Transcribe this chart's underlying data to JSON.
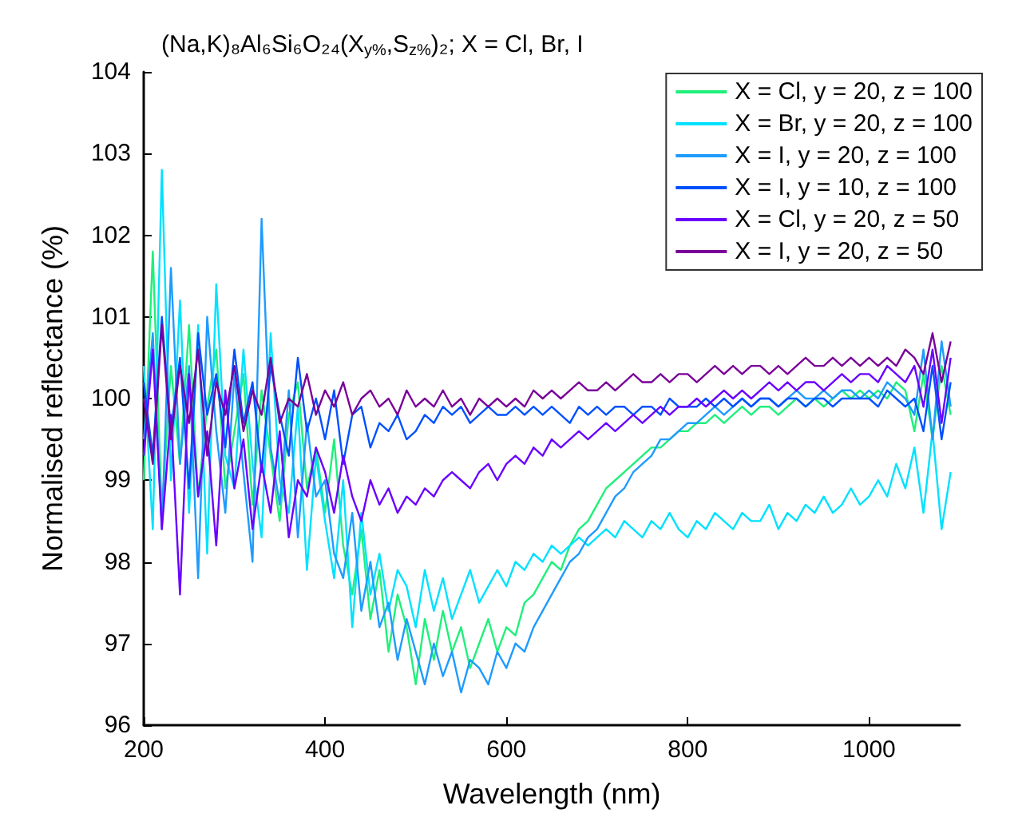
{
  "chart_data": {
    "type": "line",
    "title": "(Na,K)₈Al₆Si₆O₂₄(X$_{y%}$,S$_{z%}$)₂; X = Cl, Br, I",
    "xlabel": "Wavelength (nm)",
    "ylabel": "Normalised reflectance (%)",
    "x": [
      200,
      210,
      220,
      230,
      240,
      250,
      260,
      270,
      280,
      290,
      300,
      310,
      320,
      330,
      340,
      350,
      360,
      370,
      380,
      390,
      400,
      410,
      420,
      430,
      440,
      450,
      460,
      470,
      480,
      490,
      500,
      510,
      520,
      530,
      540,
      550,
      560,
      570,
      580,
      590,
      600,
      610,
      620,
      630,
      640,
      650,
      660,
      670,
      680,
      690,
      700,
      710,
      720,
      730,
      740,
      750,
      760,
      770,
      780,
      790,
      800,
      810,
      820,
      830,
      840,
      850,
      860,
      870,
      880,
      890,
      900,
      910,
      920,
      930,
      940,
      950,
      960,
      970,
      980,
      990,
      1000,
      1010,
      1020,
      1030,
      1040,
      1050,
      1060,
      1070,
      1080,
      1090
    ],
    "xlim": [
      200,
      1100
    ],
    "xticks": [
      200,
      400,
      600,
      800,
      1000
    ],
    "ylim": [
      96,
      104
    ],
    "yticks": [
      96,
      97,
      98,
      99,
      100,
      101,
      102,
      103,
      104
    ],
    "legend": "top right",
    "grid": false,
    "marker": "none",
    "line_style": "solid",
    "series": [
      {
        "name": "X = Cl, y = 20, z = 100",
        "color": "#1ef07a",
        "values": [
          99.0,
          101.8,
          98.6,
          100.4,
          99.2,
          100.9,
          98.8,
          99.9,
          100.6,
          98.9,
          99.6,
          100.3,
          98.7,
          100.1,
          99.3,
          98.5,
          99.8,
          100.2,
          98.9,
          99.4,
          98.6,
          99.5,
          98.2,
          97.6,
          98.4,
          97.3,
          97.9,
          96.9,
          97.6,
          97.2,
          96.5,
          97.3,
          96.8,
          97.4,
          96.9,
          97.2,
          96.7,
          97.0,
          97.3,
          96.9,
          97.2,
          97.1,
          97.5,
          97.6,
          97.8,
          98.0,
          97.9,
          98.2,
          98.4,
          98.5,
          98.7,
          98.9,
          99.0,
          99.1,
          99.2,
          99.3,
          99.4,
          99.4,
          99.5,
          99.6,
          99.6,
          99.7,
          99.7,
          99.8,
          99.7,
          99.8,
          99.9,
          99.8,
          99.9,
          99.9,
          99.8,
          99.9,
          100.0,
          99.9,
          100.0,
          99.9,
          100.0,
          100.1,
          100.0,
          100.1,
          100.0,
          100.1,
          100.0,
          100.2,
          100.1,
          99.6,
          100.3,
          99.5,
          100.4,
          99.8
        ]
      },
      {
        "name": "X = Br, y = 20, z = 100",
        "color": "#00e1ff",
        "values": [
          100.4,
          98.4,
          102.8,
          99.0,
          101.2,
          98.6,
          100.9,
          98.1,
          101.4,
          99.3,
          98.9,
          100.6,
          99.2,
          98.3,
          100.8,
          99.0,
          98.6,
          99.9,
          97.9,
          99.3,
          98.5,
          97.8,
          99.0,
          97.2,
          98.6,
          97.6,
          98.1,
          97.4,
          97.9,
          97.7,
          97.2,
          97.9,
          97.4,
          97.8,
          97.3,
          97.6,
          97.9,
          97.5,
          97.7,
          97.9,
          97.7,
          98.0,
          97.9,
          98.1,
          98.0,
          98.2,
          98.1,
          98.2,
          98.3,
          98.2,
          98.3,
          98.4,
          98.3,
          98.5,
          98.4,
          98.3,
          98.5,
          98.4,
          98.6,
          98.4,
          98.3,
          98.5,
          98.4,
          98.6,
          98.5,
          98.4,
          98.6,
          98.5,
          98.5,
          98.7,
          98.4,
          98.6,
          98.5,
          98.7,
          98.6,
          98.8,
          98.6,
          98.7,
          98.9,
          98.7,
          98.8,
          99.0,
          98.8,
          99.2,
          98.9,
          99.4,
          98.6,
          99.6,
          98.4,
          99.1
        ]
      },
      {
        "name": "X = I, y = 20, z = 100",
        "color": "#1e9bff",
        "values": [
          99.5,
          100.8,
          98.4,
          101.6,
          99.2,
          100.4,
          97.8,
          101.0,
          99.6,
          98.6,
          100.3,
          99.1,
          98.0,
          102.2,
          99.4,
          98.7,
          100.1,
          98.3,
          99.7,
          98.8,
          99.0,
          98.1,
          97.8,
          98.6,
          97.4,
          98.0,
          97.2,
          97.5,
          96.8,
          97.3,
          96.9,
          96.5,
          97.0,
          96.6,
          96.9,
          96.4,
          96.8,
          96.7,
          96.5,
          96.9,
          96.7,
          97.0,
          96.9,
          97.2,
          97.4,
          97.6,
          97.8,
          98.0,
          98.1,
          98.3,
          98.4,
          98.6,
          98.8,
          98.9,
          99.1,
          99.2,
          99.3,
          99.5,
          99.5,
          99.6,
          99.7,
          99.7,
          99.8,
          99.9,
          99.8,
          99.9,
          100.0,
          99.9,
          100.0,
          100.0,
          99.9,
          100.0,
          100.1,
          100.0,
          100.0,
          100.1,
          100.0,
          100.1,
          100.1,
          100.0,
          100.1,
          100.0,
          100.2,
          100.1,
          100.0,
          99.8,
          100.6,
          99.5,
          100.7,
          99.9
        ]
      },
      {
        "name": "X = I, y = 10, z = 100",
        "color": "#0050ff",
        "values": [
          100.2,
          99.3,
          101.0,
          99.6,
          100.5,
          98.9,
          100.8,
          99.8,
          100.3,
          99.4,
          100.6,
          99.7,
          100.2,
          99.1,
          100.4,
          99.8,
          99.3,
          100.5,
          99.6,
          100.0,
          99.5,
          100.1,
          99.2,
          99.8,
          99.9,
          99.4,
          99.7,
          99.6,
          99.8,
          99.5,
          99.6,
          99.8,
          99.7,
          99.9,
          99.8,
          99.9,
          99.7,
          99.8,
          99.9,
          99.8,
          99.8,
          99.9,
          99.8,
          99.9,
          99.8,
          99.9,
          99.8,
          99.7,
          99.9,
          99.8,
          99.9,
          99.8,
          99.9,
          99.9,
          99.8,
          99.9,
          99.9,
          99.8,
          100.0,
          99.9,
          99.9,
          99.9,
          100.0,
          99.9,
          100.0,
          99.9,
          100.0,
          99.9,
          100.0,
          100.0,
          99.9,
          100.0,
          100.0,
          99.9,
          100.0,
          100.0,
          99.9,
          100.0,
          100.0,
          100.0,
          100.0,
          99.9,
          100.1,
          100.0,
          99.9,
          100.0,
          99.6,
          100.4,
          99.5,
          100.2
        ]
      },
      {
        "name": "X = Cl, y = 20, z = 50",
        "color": "#6a00ff",
        "values": [
          99.3,
          100.6,
          98.4,
          99.8,
          97.6,
          100.3,
          98.8,
          99.6,
          98.2,
          100.1,
          98.9,
          99.5,
          98.4,
          99.2,
          98.6,
          99.6,
          98.3,
          99.0,
          98.8,
          99.4,
          99.1,
          98.6,
          99.3,
          98.8,
          98.5,
          99.0,
          98.7,
          98.9,
          98.6,
          98.8,
          98.7,
          98.9,
          98.8,
          99.0,
          99.1,
          99.0,
          98.9,
          99.1,
          99.2,
          99.0,
          99.2,
          99.3,
          99.2,
          99.4,
          99.3,
          99.5,
          99.4,
          99.5,
          99.6,
          99.5,
          99.6,
          99.7,
          99.6,
          99.7,
          99.8,
          99.7,
          99.8,
          99.9,
          99.8,
          99.9,
          99.9,
          100.0,
          99.9,
          100.0,
          100.1,
          100.0,
          100.1,
          100.0,
          100.1,
          100.2,
          100.1,
          100.2,
          100.1,
          100.2,
          100.2,
          100.1,
          100.2,
          100.3,
          100.2,
          100.3,
          100.3,
          100.2,
          100.4,
          100.3,
          100.2,
          100.4,
          99.9,
          100.6,
          99.7,
          100.5
        ]
      },
      {
        "name": "X = I, y = 20, z = 50",
        "color": "#7a0099",
        "values": [
          100.0,
          99.2,
          100.9,
          99.5,
          100.4,
          99.7,
          100.6,
          99.3,
          100.2,
          99.8,
          100.4,
          99.6,
          100.1,
          99.8,
          100.5,
          99.7,
          100.0,
          99.9,
          100.3,
          99.8,
          100.1,
          99.9,
          100.2,
          99.8,
          100.0,
          100.1,
          99.9,
          100.0,
          99.8,
          100.1,
          99.9,
          100.0,
          99.9,
          100.1,
          99.9,
          100.0,
          99.8,
          100.0,
          99.9,
          100.0,
          99.9,
          100.0,
          99.9,
          100.1,
          100.0,
          100.1,
          100.0,
          100.1,
          100.2,
          100.1,
          100.1,
          100.2,
          100.1,
          100.2,
          100.3,
          100.2,
          100.2,
          100.3,
          100.2,
          100.3,
          100.3,
          100.2,
          100.3,
          100.4,
          100.3,
          100.4,
          100.3,
          100.4,
          100.4,
          100.3,
          100.4,
          100.3,
          100.4,
          100.5,
          100.4,
          100.4,
          100.5,
          100.4,
          100.5,
          100.4,
          100.5,
          100.4,
          100.5,
          100.4,
          100.6,
          100.5,
          100.3,
          100.8,
          100.2,
          100.7
        ]
      }
    ]
  }
}
